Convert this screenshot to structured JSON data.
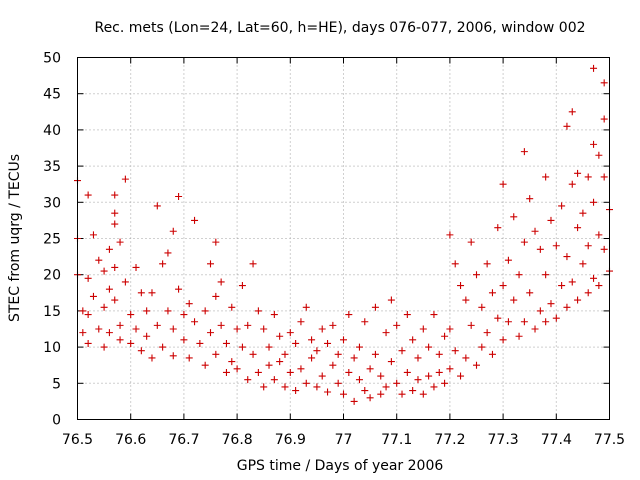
{
  "chart_data": {
    "type": "scatter",
    "title": "Rec. mets (Lon=24, Lat=60, h=HE), days 076-077, 2006, window 002",
    "xlabel": "GPS time / Days of year 2006",
    "ylabel": "STEC from uqrg / TECUs",
    "xlim": [
      76.5,
      77.5
    ],
    "ylim": [
      0,
      50
    ],
    "xticks": [
      "76.5",
      "76.6",
      "76.7",
      "76.8",
      "76.9",
      "77",
      "77.1",
      "77.2",
      "77.3",
      "77.4",
      "77.5"
    ],
    "yticks": [
      "0",
      "5",
      "10",
      "15",
      "20",
      "25",
      "30",
      "35",
      "40",
      "45",
      "50"
    ],
    "grid": true,
    "marker": "plus",
    "color": "#cc0000",
    "series": [
      {
        "points": [
          [
            76.5,
            33.0
          ],
          [
            76.5,
            25.0
          ],
          [
            76.5,
            20.0
          ],
          [
            76.51,
            15.0
          ],
          [
            76.51,
            12.0
          ],
          [
            76.52,
            31.0
          ],
          [
            76.52,
            19.5
          ],
          [
            76.52,
            14.5
          ],
          [
            76.52,
            10.5
          ],
          [
            76.53,
            25.5
          ],
          [
            76.53,
            17.0
          ],
          [
            76.54,
            22.0
          ],
          [
            76.54,
            12.5
          ],
          [
            76.55,
            20.5
          ],
          [
            76.55,
            15.5
          ],
          [
            76.55,
            10.0
          ],
          [
            76.56,
            23.5
          ],
          [
            76.56,
            18.0
          ],
          [
            76.56,
            12.0
          ],
          [
            76.57,
            28.5
          ],
          [
            76.57,
            31.0
          ],
          [
            76.57,
            27.0
          ],
          [
            76.57,
            21.0
          ],
          [
            76.57,
            16.5
          ],
          [
            76.58,
            24.5
          ],
          [
            76.58,
            13.0
          ],
          [
            76.58,
            11.0
          ],
          [
            76.59,
            33.2
          ],
          [
            76.59,
            19.0
          ],
          [
            76.6,
            14.5
          ],
          [
            76.6,
            10.5
          ],
          [
            76.61,
            21.0
          ],
          [
            76.61,
            12.5
          ],
          [
            76.62,
            17.5
          ],
          [
            76.62,
            9.5
          ],
          [
            76.63,
            15.0
          ],
          [
            76.63,
            11.5
          ],
          [
            76.64,
            17.5
          ],
          [
            76.64,
            8.5
          ],
          [
            76.65,
            29.5
          ],
          [
            76.65,
            13.0
          ],
          [
            76.66,
            21.5
          ],
          [
            76.66,
            10.0
          ],
          [
            76.67,
            23.0
          ],
          [
            76.67,
            15.0
          ],
          [
            76.68,
            26.0
          ],
          [
            76.68,
            12.5
          ],
          [
            76.68,
            8.8
          ],
          [
            76.69,
            30.8
          ],
          [
            76.69,
            18.0
          ],
          [
            76.7,
            14.5
          ],
          [
            76.7,
            11.0
          ],
          [
            76.71,
            16.0
          ],
          [
            76.71,
            8.5
          ],
          [
            76.72,
            27.5
          ],
          [
            76.72,
            13.5
          ],
          [
            76.73,
            10.5
          ],
          [
            76.74,
            15.0
          ],
          [
            76.74,
            7.5
          ],
          [
            76.75,
            21.5
          ],
          [
            76.75,
            12.0
          ],
          [
            76.76,
            24.5
          ],
          [
            76.76,
            17.0
          ],
          [
            76.76,
            9.0
          ],
          [
            76.77,
            19.0
          ],
          [
            76.77,
            13.0
          ],
          [
            76.78,
            10.5
          ],
          [
            76.78,
            6.5
          ],
          [
            76.79,
            15.5
          ],
          [
            76.79,
            8.0
          ],
          [
            76.8,
            12.5
          ],
          [
            76.8,
            7.0
          ],
          [
            76.81,
            18.5
          ],
          [
            76.81,
            10.0
          ],
          [
            76.82,
            13.0
          ],
          [
            76.82,
            5.5
          ],
          [
            76.83,
            21.5
          ],
          [
            76.83,
            9.0
          ],
          [
            76.84,
            15.0
          ],
          [
            76.84,
            6.5
          ],
          [
            76.85,
            12.5
          ],
          [
            76.85,
            4.5
          ],
          [
            76.86,
            10.0
          ],
          [
            76.86,
            7.5
          ],
          [
            76.87,
            14.5
          ],
          [
            76.87,
            5.5
          ],
          [
            76.88,
            11.5
          ],
          [
            76.88,
            8.0
          ],
          [
            76.89,
            9.0
          ],
          [
            76.89,
            4.5
          ],
          [
            76.9,
            12.0
          ],
          [
            76.9,
            6.5
          ],
          [
            76.91,
            10.5
          ],
          [
            76.91,
            4.0
          ],
          [
            76.92,
            13.5
          ],
          [
            76.92,
            7.0
          ],
          [
            76.93,
            15.5
          ],
          [
            76.93,
            5.0
          ],
          [
            76.94,
            11.0
          ],
          [
            76.94,
            8.5
          ],
          [
            76.95,
            9.5
          ],
          [
            76.95,
            4.5
          ],
          [
            76.96,
            12.5
          ],
          [
            76.96,
            6.0
          ],
          [
            76.97,
            10.5
          ],
          [
            76.97,
            3.8
          ],
          [
            76.98,
            13.0
          ],
          [
            76.98,
            7.5
          ],
          [
            76.99,
            9.0
          ],
          [
            76.99,
            5.0
          ],
          [
            77.0,
            11.0
          ],
          [
            77.0,
            3.5
          ],
          [
            77.01,
            14.5
          ],
          [
            77.01,
            6.5
          ],
          [
            77.02,
            8.5
          ],
          [
            77.02,
            2.5
          ],
          [
            77.03,
            10.0
          ],
          [
            77.03,
            5.5
          ],
          [
            77.04,
            13.5
          ],
          [
            77.04,
            4.0
          ],
          [
            77.05,
            7.0
          ],
          [
            77.05,
            3.0
          ],
          [
            77.06,
            15.5
          ],
          [
            77.06,
            9.0
          ],
          [
            77.07,
            6.0
          ],
          [
            77.07,
            3.5
          ],
          [
            77.08,
            12.0
          ],
          [
            77.08,
            4.5
          ],
          [
            77.09,
            16.5
          ],
          [
            77.09,
            8.0
          ],
          [
            77.1,
            13.0
          ],
          [
            77.1,
            5.0
          ],
          [
            77.11,
            9.5
          ],
          [
            77.11,
            3.5
          ],
          [
            77.12,
            14.5
          ],
          [
            77.12,
            6.5
          ],
          [
            77.13,
            11.0
          ],
          [
            77.13,
            4.0
          ],
          [
            77.14,
            8.5
          ],
          [
            77.14,
            5.5
          ],
          [
            77.15,
            12.5
          ],
          [
            77.15,
            3.5
          ],
          [
            77.16,
            10.0
          ],
          [
            77.16,
            6.0
          ],
          [
            77.17,
            14.5
          ],
          [
            77.17,
            4.5
          ],
          [
            77.18,
            9.0
          ],
          [
            77.18,
            6.5
          ],
          [
            77.19,
            11.5
          ],
          [
            77.19,
            5.0
          ],
          [
            77.2,
            25.5
          ],
          [
            77.2,
            12.5
          ],
          [
            77.2,
            7.0
          ],
          [
            77.21,
            21.5
          ],
          [
            77.21,
            9.5
          ],
          [
            77.22,
            18.5
          ],
          [
            77.22,
            6.0
          ],
          [
            77.23,
            16.5
          ],
          [
            77.23,
            8.5
          ],
          [
            77.24,
            24.5
          ],
          [
            77.24,
            13.0
          ],
          [
            77.25,
            20.0
          ],
          [
            77.25,
            7.5
          ],
          [
            77.26,
            15.5
          ],
          [
            77.26,
            10.0
          ],
          [
            77.27,
            21.5
          ],
          [
            77.27,
            12.0
          ],
          [
            77.28,
            17.5
          ],
          [
            77.28,
            9.0
          ],
          [
            77.29,
            26.5
          ],
          [
            77.29,
            14.0
          ],
          [
            77.3,
            32.5
          ],
          [
            77.3,
            18.5
          ],
          [
            77.3,
            11.0
          ],
          [
            77.31,
            22.0
          ],
          [
            77.31,
            13.5
          ],
          [
            77.32,
            28.0
          ],
          [
            77.32,
            16.5
          ],
          [
            77.33,
            20.0
          ],
          [
            77.33,
            11.5
          ],
          [
            77.34,
            37.0
          ],
          [
            77.34,
            24.5
          ],
          [
            77.34,
            13.5
          ],
          [
            77.35,
            30.5
          ],
          [
            77.35,
            17.5
          ],
          [
            77.36,
            26.0
          ],
          [
            77.36,
            12.5
          ],
          [
            77.37,
            23.5
          ],
          [
            77.37,
            15.0
          ],
          [
            77.38,
            33.5
          ],
          [
            77.38,
            20.0
          ],
          [
            77.38,
            13.5
          ],
          [
            77.39,
            27.5
          ],
          [
            77.39,
            16.0
          ],
          [
            77.4,
            24.0
          ],
          [
            77.4,
            14.0
          ],
          [
            77.41,
            29.5
          ],
          [
            77.41,
            18.5
          ],
          [
            77.42,
            40.5
          ],
          [
            77.42,
            22.5
          ],
          [
            77.42,
            15.5
          ],
          [
            77.43,
            42.5
          ],
          [
            77.43,
            32.5
          ],
          [
            77.43,
            19.0
          ],
          [
            77.44,
            34.0
          ],
          [
            77.44,
            26.5
          ],
          [
            77.44,
            16.5
          ],
          [
            77.45,
            28.5
          ],
          [
            77.45,
            21.5
          ],
          [
            77.46,
            33.5
          ],
          [
            77.46,
            24.0
          ],
          [
            77.46,
            17.5
          ],
          [
            77.47,
            48.5
          ],
          [
            77.47,
            38.0
          ],
          [
            77.47,
            30.0
          ],
          [
            77.47,
            19.5
          ],
          [
            77.48,
            36.5
          ],
          [
            77.48,
            25.5
          ],
          [
            77.48,
            18.5
          ],
          [
            77.49,
            46.5
          ],
          [
            77.49,
            41.5
          ],
          [
            77.49,
            33.5
          ],
          [
            77.49,
            23.5
          ],
          [
            77.5,
            29.0
          ],
          [
            77.5,
            20.5
          ]
        ]
      }
    ]
  }
}
